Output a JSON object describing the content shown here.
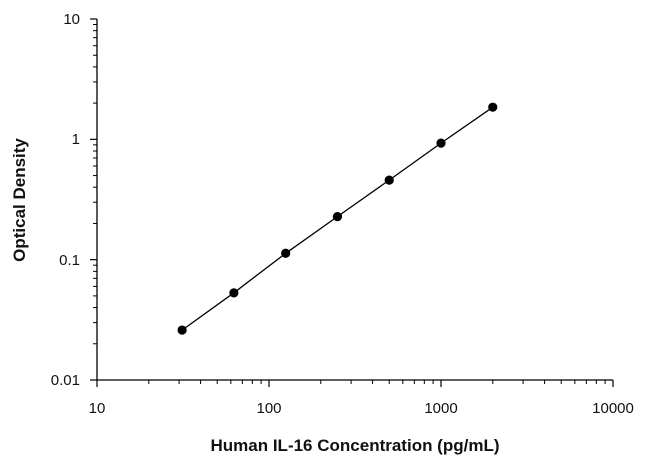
{
  "chart_data": {
    "type": "line",
    "title": "",
    "xlabel": "Human IL-16 Concentration (pg/mL)",
    "ylabel": "Optical Density",
    "x_scale": "log",
    "y_scale": "log",
    "xlim": [
      10,
      10000
    ],
    "ylim": [
      0.01,
      10
    ],
    "x_ticks": [
      "10",
      "100",
      "1000",
      "10000"
    ],
    "y_ticks": [
      "10",
      "1",
      "0.1",
      "0.01"
    ],
    "grid": false,
    "legend": "none",
    "series": [
      {
        "x": [
          31.25,
          62.5,
          125,
          250,
          500,
          1000,
          2000
        ],
        "y": [
          0.026,
          0.053,
          0.113,
          0.228,
          0.458,
          0.93,
          1.85
        ]
      }
    ],
    "colors": {
      "marker": "#000000",
      "line": "#000000",
      "axis": "#000000"
    }
  }
}
